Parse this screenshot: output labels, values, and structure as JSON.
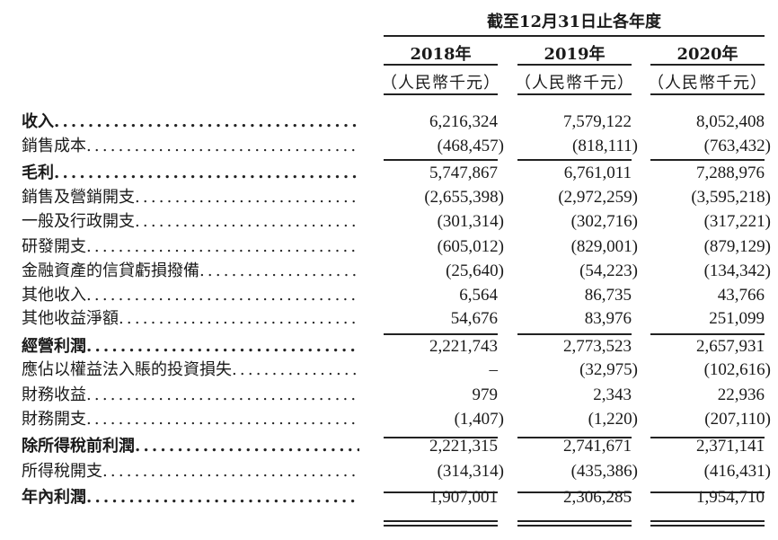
{
  "header": {
    "period": "截至12月31日止各年度",
    "years": [
      "2018年",
      "2019年",
      "2020年"
    ],
    "unit": "（人民幣千元）"
  },
  "rows": [
    {
      "label": "收入",
      "bold": true,
      "values": [
        "6,216,324",
        "7,579,122",
        "8,052,408"
      ]
    },
    {
      "label": "銷售成本",
      "bold": false,
      "values": [
        "(468,457)",
        "(818,111)",
        "(763,432)"
      ]
    },
    {
      "label": "毛利",
      "bold": true,
      "values": [
        "5,747,867",
        "6,761,011",
        "7,288,976"
      ]
    },
    {
      "label": "銷售及營銷開支",
      "bold": false,
      "values": [
        "(2,655,398)",
        "(2,972,259)",
        "(3,595,218)"
      ]
    },
    {
      "label": "一般及行政開支",
      "bold": false,
      "values": [
        "(301,314)",
        "(302,716)",
        "(317,221)"
      ]
    },
    {
      "label": "研發開支",
      "bold": false,
      "values": [
        "(605,012)",
        "(829,001)",
        "(879,129)"
      ]
    },
    {
      "label": "金融資產的信貸虧損撥備",
      "bold": false,
      "values": [
        "(25,640)",
        "(54,223)",
        "(134,342)"
      ]
    },
    {
      "label": "其他收入",
      "bold": false,
      "values": [
        "6,564",
        "86,735",
        "43,766"
      ]
    },
    {
      "label": "其他收益淨額",
      "bold": false,
      "values": [
        "54,676",
        "83,976",
        "251,099"
      ]
    },
    {
      "label": "經營利潤",
      "bold": true,
      "values": [
        "2,221,743",
        "2,773,523",
        "2,657,931"
      ]
    },
    {
      "label": "應佔以權益法入賬的投資損失",
      "bold": false,
      "values": [
        "–",
        "(32,975)",
        "(102,616)"
      ]
    },
    {
      "label": "財務收益",
      "bold": false,
      "values": [
        "979",
        "2,343",
        "22,936"
      ]
    },
    {
      "label": "財務開支",
      "bold": false,
      "values": [
        "(1,407)",
        "(1,220)",
        "(207,110)"
      ]
    },
    {
      "label": "除所得稅前利潤",
      "bold": true,
      "values": [
        "2,221,315",
        "2,741,671",
        "2,371,141"
      ]
    },
    {
      "label": "所得稅開支",
      "bold": false,
      "values": [
        "(314,314)",
        "(435,386)",
        "(416,431)"
      ]
    },
    {
      "label": "年內利潤",
      "bold": true,
      "values": [
        "1,907,001",
        "2,306,285",
        "1,954,710"
      ]
    }
  ]
}
